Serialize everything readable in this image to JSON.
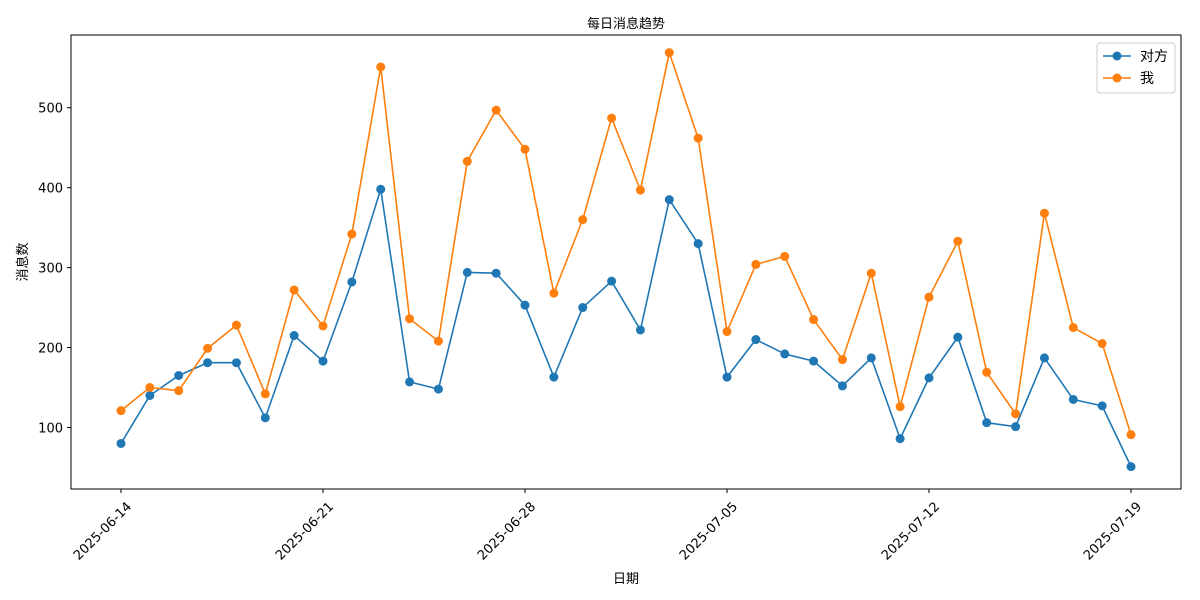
{
  "chart_data": {
    "type": "line",
    "title": "每日消息趋势",
    "xlabel": "日期",
    "ylabel": "消息数",
    "x": [
      "2025-06-14",
      "2025-06-15",
      "2025-06-16",
      "2025-06-17",
      "2025-06-18",
      "2025-06-19",
      "2025-06-20",
      "2025-06-21",
      "2025-06-22",
      "2025-06-23",
      "2025-06-24",
      "2025-06-25",
      "2025-06-26",
      "2025-06-27",
      "2025-06-28",
      "2025-06-29",
      "2025-06-30",
      "2025-07-01",
      "2025-07-02",
      "2025-07-03",
      "2025-07-04",
      "2025-07-05",
      "2025-07-06",
      "2025-07-07",
      "2025-07-08",
      "2025-07-09",
      "2025-07-10",
      "2025-07-11",
      "2025-07-12",
      "2025-07-13",
      "2025-07-14",
      "2025-07-15",
      "2025-07-16",
      "2025-07-17",
      "2025-07-18",
      "2025-07-19"
    ],
    "xticks": [
      "2025-06-14",
      "2025-06-21",
      "2025-06-28",
      "2025-07-05",
      "2025-07-12",
      "2025-07-19"
    ],
    "yticks": [
      100,
      200,
      300,
      400,
      500
    ],
    "ylim": [
      23,
      591
    ],
    "grid": false,
    "legend_position": "top-right",
    "series": [
      {
        "name": "对方",
        "color": "#1f77b4",
        "marker": "circle",
        "values": [
          80,
          140,
          165,
          181,
          181,
          112,
          215,
          183,
          282,
          398,
          157,
          148,
          294,
          293,
          253,
          163,
          250,
          283,
          222,
          385,
          330,
          163,
          210,
          192,
          183,
          152,
          187,
          86,
          162,
          213,
          106,
          101,
          187,
          135,
          127,
          51
        ]
      },
      {
        "name": "我",
        "color": "#ff7f0e",
        "marker": "circle",
        "values": [
          121,
          150,
          146,
          199,
          228,
          142,
          272,
          227,
          342,
          551,
          236,
          208,
          433,
          497,
          448,
          268,
          360,
          487,
          397,
          569,
          462,
          220,
          304,
          314,
          235,
          185,
          293,
          126,
          263,
          333,
          169,
          117,
          368,
          225,
          205,
          91
        ]
      }
    ]
  }
}
